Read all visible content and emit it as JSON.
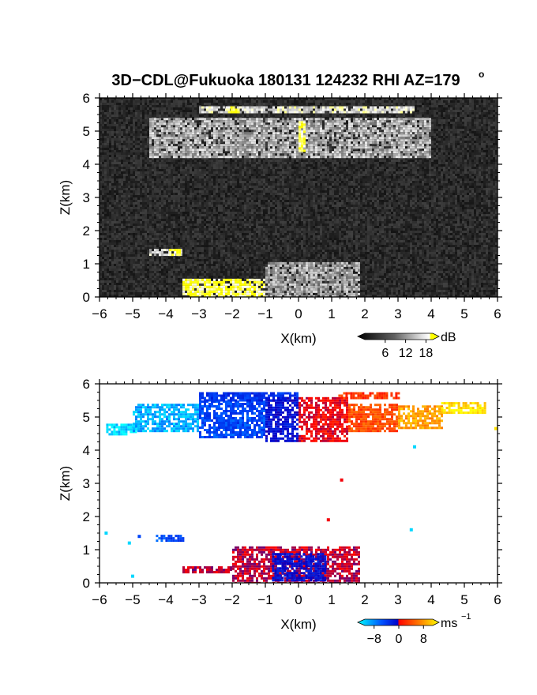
{
  "figure": {
    "title": "3D−CDL@Fukuoka 180131 124232 RHI AZ=179",
    "title_degree": "o"
  },
  "chart_data": [
    {
      "type": "heatmap",
      "panel": "reflectivity",
      "xlabel": "X(km)",
      "ylabel": "Z(km)",
      "xlim": [
        -6,
        6
      ],
      "ylim": [
        0,
        6
      ],
      "xticks": [
        "−6",
        "−5",
        "−4",
        "−3",
        "−2",
        "−1",
        "0",
        "1",
        "2",
        "3",
        "4",
        "5",
        "6"
      ],
      "yticks": [
        "0",
        "1",
        "2",
        "3",
        "4",
        "5",
        "6"
      ],
      "background": "#1e1e1e",
      "colorbar": {
        "unit": "dB",
        "ticks": [
          "6",
          "12",
          "18"
        ],
        "tick_values": [
          6,
          12,
          18
        ],
        "range": [
          0,
          20
        ],
        "colors": [
          "#000000",
          "#404040",
          "#808080",
          "#c0c0c0",
          "#ffffff",
          "#ffff00"
        ]
      },
      "echo_regions": [
        {
          "x": [
            -4.5,
            4.0
          ],
          "z": [
            4.2,
            5.4
          ],
          "value": 11
        },
        {
          "x": [
            -3.0,
            3.5
          ],
          "z": [
            5.55,
            5.75
          ],
          "value": 14
        },
        {
          "x": [
            -1.0,
            1.8
          ],
          "z": [
            0.0,
            1.05
          ],
          "value": 10
        },
        {
          "x": [
            -4.5,
            -3.5
          ],
          "z": [
            1.3,
            1.45
          ],
          "value": 13
        }
      ],
      "strong_echo": [
        {
          "x": [
            0.0,
            0.2
          ],
          "z": [
            4.4,
            5.3
          ],
          "value": 19
        },
        {
          "x": [
            -2.2,
            -1.8
          ],
          "z": [
            5.6,
            5.75
          ],
          "value": 19
        },
        {
          "x": [
            -3.9,
            -3.6
          ],
          "z": [
            1.3,
            1.45
          ],
          "value": 19
        },
        {
          "x": [
            -3.5,
            -1.0
          ],
          "z": [
            0.0,
            0.55
          ],
          "value": 19
        }
      ]
    },
    {
      "type": "heatmap",
      "panel": "doppler_velocity",
      "xlabel": "X(km)",
      "ylabel": "Z(km)",
      "xlim": [
        -6,
        6
      ],
      "ylim": [
        0,
        6
      ],
      "xticks": [
        "−6",
        "−5",
        "−4",
        "−3",
        "−2",
        "−1",
        "0",
        "1",
        "2",
        "3",
        "4",
        "5",
        "6"
      ],
      "yticks": [
        "0",
        "1",
        "2",
        "3",
        "4",
        "5",
        "6"
      ],
      "background": "#ffffff",
      "colorbar": {
        "unit": "ms",
        "unit_exponent": "−1",
        "ticks": [
          "−8",
          "0",
          "8"
        ],
        "tick_values": [
          -8,
          0,
          8
        ],
        "range": [
          -11,
          11
        ],
        "colors": [
          "#00ffff",
          "#0050ff",
          "#0000c8",
          "#ff0000",
          "#ff7800",
          "#ffff00"
        ]
      },
      "velocity_regions": [
        {
          "x": [
            -5.8,
            -4.8
          ],
          "z": [
            4.5,
            4.8
          ],
          "value": -10
        },
        {
          "x": [
            -5.0,
            -3.0
          ],
          "z": [
            4.6,
            5.4
          ],
          "value": -9
        },
        {
          "x": [
            -3.0,
            -1.0
          ],
          "z": [
            4.4,
            5.5
          ],
          "value": -6
        },
        {
          "x": [
            -3.0,
            0.0
          ],
          "z": [
            5.5,
            5.75
          ],
          "value": -5
        },
        {
          "x": [
            -1.0,
            0.0
          ],
          "z": [
            4.3,
            5.6
          ],
          "value": -3
        },
        {
          "x": [
            0.0,
            1.5
          ],
          "z": [
            4.3,
            5.6
          ],
          "value": 2
        },
        {
          "x": [
            1.2,
            3.0
          ],
          "z": [
            5.55,
            5.75
          ],
          "value": 4
        },
        {
          "x": [
            1.5,
            3.0
          ],
          "z": [
            4.6,
            5.4
          ],
          "value": 5
        },
        {
          "x": [
            3.0,
            4.3
          ],
          "z": [
            4.7,
            5.35
          ],
          "value": 8
        },
        {
          "x": [
            4.3,
            5.6
          ],
          "z": [
            5.1,
            5.45
          ],
          "value": 10
        },
        {
          "x": [
            -4.3,
            -3.5
          ],
          "z": [
            1.3,
            1.45
          ],
          "value": -6
        },
        {
          "x": [
            -2.0,
            1.8
          ],
          "z": [
            0.0,
            1.1
          ],
          "value": 1
        },
        {
          "x": [
            -0.8,
            0.8
          ],
          "z": [
            0.1,
            0.9
          ],
          "value": -3
        },
        {
          "x": [
            -3.5,
            -2.0
          ],
          "z": [
            0.35,
            0.5
          ],
          "value": 1
        }
      ],
      "isolated_points": [
        {
          "x": -5.8,
          "z": 1.5,
          "value": -10
        },
        {
          "x": -5.1,
          "z": 1.2,
          "value": -10
        },
        {
          "x": -4.8,
          "z": 1.4,
          "value": -6
        },
        {
          "x": -5.0,
          "z": 0.2,
          "value": -10
        },
        {
          "x": 1.3,
          "z": 3.1,
          "value": 2
        },
        {
          "x": 0.9,
          "z": 1.9,
          "value": 2
        },
        {
          "x": 3.4,
          "z": 1.6,
          "value": -10
        },
        {
          "x": 3.5,
          "z": 4.1,
          "value": -10
        },
        {
          "x": 5.95,
          "z": 4.65,
          "value": 10
        }
      ]
    }
  ]
}
